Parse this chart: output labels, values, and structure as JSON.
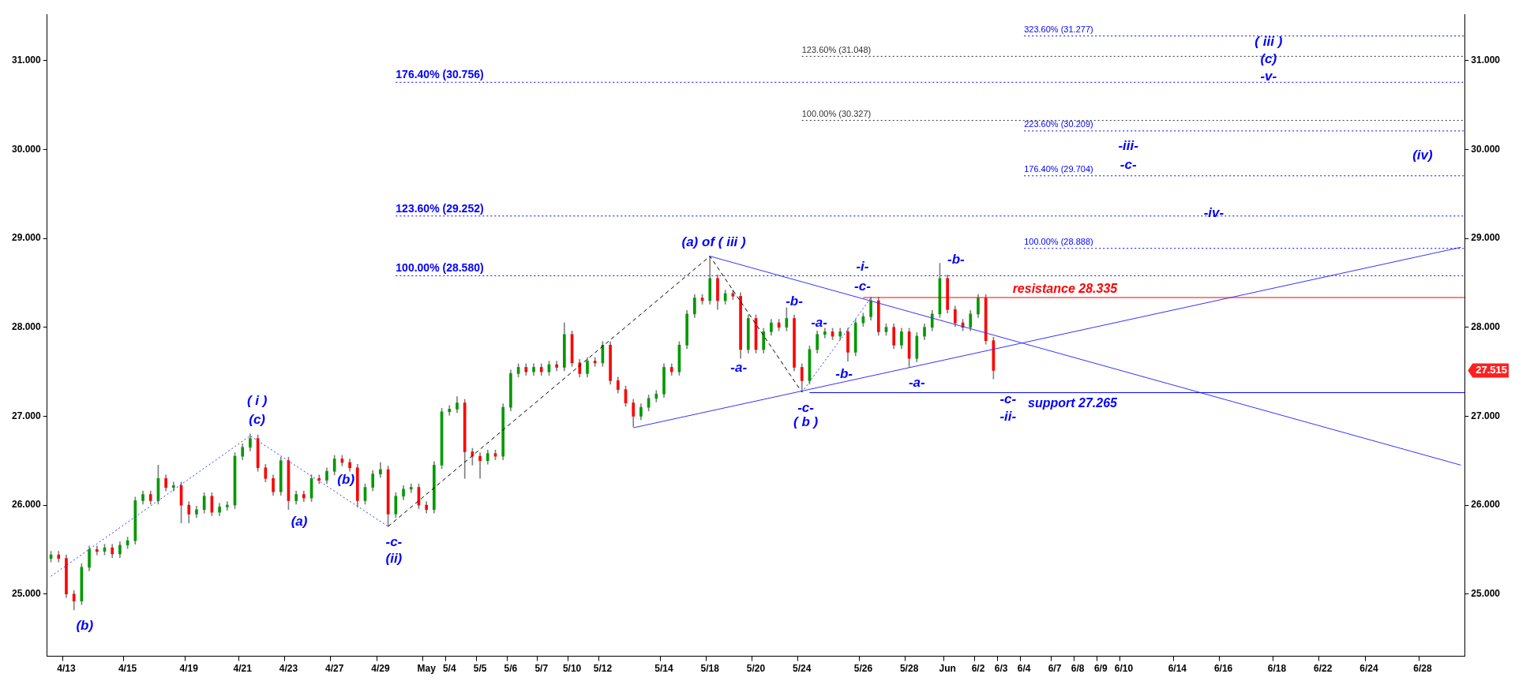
{
  "chart_data": {
    "type": "candlestick",
    "categories": [
      null,
      null,
      "4/13",
      null,
      null,
      null,
      null,
      null,
      null,
      null,
      "4/15",
      null,
      null,
      null,
      null,
      null,
      null,
      null,
      "4/19",
      null,
      null,
      null,
      null,
      null,
      null,
      "4/21",
      null,
      null,
      null,
      null,
      null,
      "4/23",
      null,
      null,
      null,
      null,
      null,
      "4/27",
      null,
      null,
      null,
      null,
      null,
      "4/29",
      null,
      null,
      null,
      null,
      null,
      "May",
      null,
      null,
      "5/4",
      null,
      null,
      null,
      "5/5",
      null,
      null,
      null,
      "5/6",
      null,
      null,
      null,
      "5/7",
      null,
      null,
      null,
      "5/10",
      null,
      null,
      null,
      "5/12",
      null,
      null,
      null,
      null,
      null,
      null,
      null,
      "5/14",
      null,
      null,
      null,
      null,
      null,
      "5/18",
      null,
      null,
      null,
      null,
      null,
      "5/20",
      null,
      null,
      null,
      null,
      null,
      "5/24",
      null,
      null,
      null,
      null,
      null,
      null,
      null,
      "5/26",
      null,
      null,
      null,
      null,
      null,
      "5/28",
      null,
      null,
      null,
      null,
      "Jun",
      null,
      null,
      null,
      "6/2",
      null,
      null,
      "6/3",
      null,
      null,
      "6/4",
      null,
      null,
      null,
      "6/7",
      null,
      null,
      "6/8",
      null,
      null,
      "6/9",
      null,
      null,
      "6/10",
      null,
      null,
      null,
      null,
      null,
      null,
      "6/14",
      null,
      null,
      null,
      null,
      null,
      "6/16",
      null,
      null,
      null,
      null,
      null,
      null,
      "6/18",
      null,
      null,
      null,
      null,
      null,
      "6/22",
      null,
      null,
      null,
      null,
      null,
      "6/24",
      null,
      null,
      null,
      null,
      null,
      null,
      "6/28",
      null,
      null,
      null,
      null,
      null
    ],
    "ohlc": [
      [
        25.4,
        25.48,
        25.36,
        25.44
      ],
      [
        25.44,
        25.48,
        25.36,
        25.4
      ],
      [
        25.4,
        25.44,
        24.96,
        25.0
      ],
      [
        25.0,
        25.04,
        24.82,
        24.92
      ],
      [
        24.92,
        25.34,
        24.88,
        25.3
      ],
      [
        25.3,
        25.54,
        25.26,
        25.5
      ],
      [
        25.5,
        25.54,
        25.44,
        25.48
      ],
      [
        25.48,
        25.56,
        25.44,
        25.52
      ],
      [
        25.52,
        25.56,
        25.41,
        25.45
      ],
      [
        25.45,
        25.59,
        25.41,
        25.55
      ],
      [
        25.55,
        25.64,
        25.51,
        25.6
      ],
      [
        25.6,
        26.09,
        25.56,
        26.05
      ],
      [
        26.05,
        26.16,
        26.01,
        26.12
      ],
      [
        26.12,
        26.16,
        26.01,
        26.05
      ],
      [
        26.05,
        26.45,
        26.01,
        26.3
      ],
      [
        26.3,
        26.34,
        26.16,
        26.2
      ],
      [
        26.2,
        26.26,
        26.16,
        26.22
      ],
      [
        26.22,
        26.26,
        25.8,
        26.0
      ],
      [
        26.0,
        26.04,
        25.8,
        25.9
      ],
      [
        25.9,
        25.99,
        25.86,
        25.95
      ],
      [
        25.95,
        26.14,
        25.91,
        26.1
      ],
      [
        26.1,
        26.14,
        25.88,
        25.92
      ],
      [
        25.92,
        26.02,
        25.88,
        25.98
      ],
      [
        25.98,
        26.04,
        25.94,
        26.0
      ],
      [
        26.0,
        26.59,
        25.96,
        26.55
      ],
      [
        26.55,
        26.69,
        26.51,
        26.65
      ],
      [
        26.65,
        26.8,
        26.61,
        26.75
      ],
      [
        26.75,
        26.79,
        26.38,
        26.42
      ],
      [
        26.42,
        26.46,
        26.26,
        26.3
      ],
      [
        26.3,
        26.34,
        26.11,
        26.15
      ],
      [
        26.15,
        26.54,
        26.11,
        26.5
      ],
      [
        26.5,
        26.54,
        25.95,
        26.05
      ],
      [
        26.05,
        26.16,
        26.01,
        26.12
      ],
      [
        26.12,
        26.16,
        26.04,
        26.08
      ],
      [
        26.08,
        26.34,
        26.04,
        26.3
      ],
      [
        26.3,
        26.34,
        26.24,
        26.28
      ],
      [
        26.28,
        26.42,
        26.24,
        26.38
      ],
      [
        26.38,
        26.56,
        26.34,
        26.52
      ],
      [
        26.52,
        26.56,
        26.44,
        26.48
      ],
      [
        26.48,
        26.52,
        26.38,
        26.42
      ],
      [
        26.42,
        26.46,
        25.98,
        26.05
      ],
      [
        26.05,
        26.24,
        26.01,
        26.2
      ],
      [
        26.2,
        26.39,
        26.16,
        26.35
      ],
      [
        26.35,
        26.48,
        26.31,
        26.4
      ],
      [
        26.4,
        26.44,
        25.76,
        25.9
      ],
      [
        25.9,
        26.14,
        25.86,
        26.1
      ],
      [
        26.1,
        26.22,
        26.06,
        26.18
      ],
      [
        26.18,
        26.24,
        26.14,
        26.2
      ],
      [
        26.2,
        26.24,
        25.96,
        26.0
      ],
      [
        26.0,
        26.04,
        25.91,
        25.95
      ],
      [
        25.95,
        26.49,
        25.91,
        26.45
      ],
      [
        26.45,
        27.09,
        26.41,
        27.05
      ],
      [
        27.05,
        27.12,
        27.01,
        27.08
      ],
      [
        27.08,
        27.22,
        27.04,
        27.15
      ],
      [
        27.15,
        27.19,
        26.3,
        26.6
      ],
      [
        26.6,
        26.64,
        26.45,
        26.55
      ],
      [
        26.55,
        26.59,
        26.3,
        26.5
      ],
      [
        26.5,
        26.62,
        26.46,
        26.58
      ],
      [
        26.58,
        26.62,
        26.51,
        26.55
      ],
      [
        26.55,
        27.14,
        26.51,
        27.1
      ],
      [
        27.1,
        27.52,
        27.06,
        27.48
      ],
      [
        27.48,
        27.59,
        27.44,
        27.55
      ],
      [
        27.55,
        27.59,
        27.46,
        27.5
      ],
      [
        27.5,
        27.59,
        27.46,
        27.55
      ],
      [
        27.55,
        27.59,
        27.46,
        27.5
      ],
      [
        27.5,
        27.62,
        27.46,
        27.58
      ],
      [
        27.58,
        27.62,
        27.51,
        27.55
      ],
      [
        27.55,
        28.05,
        27.51,
        27.92
      ],
      [
        27.92,
        27.96,
        27.56,
        27.6
      ],
      [
        27.6,
        27.64,
        27.44,
        27.48
      ],
      [
        27.48,
        27.66,
        27.44,
        27.62
      ],
      [
        27.62,
        27.66,
        27.56,
        27.6
      ],
      [
        27.6,
        27.84,
        27.56,
        27.8
      ],
      [
        27.8,
        27.84,
        27.36,
        27.4
      ],
      [
        27.4,
        27.44,
        27.26,
        27.3
      ],
      [
        27.3,
        27.34,
        27.11,
        27.15
      ],
      [
        27.15,
        27.19,
        26.88,
        27.0
      ],
      [
        27.0,
        27.14,
        26.96,
        27.1
      ],
      [
        27.1,
        27.24,
        27.06,
        27.2
      ],
      [
        27.2,
        27.29,
        27.16,
        27.25
      ],
      [
        27.25,
        27.59,
        27.21,
        27.55
      ],
      [
        27.55,
        27.59,
        27.46,
        27.5
      ],
      [
        27.5,
        27.84,
        27.46,
        27.8
      ],
      [
        27.8,
        28.19,
        27.76,
        28.15
      ],
      [
        28.15,
        28.37,
        28.11,
        28.33
      ],
      [
        28.33,
        28.37,
        28.26,
        28.3
      ],
      [
        28.3,
        28.8,
        28.26,
        28.55
      ],
      [
        28.55,
        28.59,
        28.2,
        28.3
      ],
      [
        28.3,
        28.42,
        28.26,
        28.38
      ],
      [
        28.38,
        28.42,
        28.31,
        28.35
      ],
      [
        28.35,
        28.39,
        27.65,
        27.75
      ],
      [
        27.75,
        28.14,
        27.71,
        28.1
      ],
      [
        28.1,
        28.14,
        27.71,
        27.75
      ],
      [
        27.75,
        27.99,
        27.71,
        27.95
      ],
      [
        27.95,
        28.09,
        27.91,
        28.05
      ],
      [
        28.05,
        28.09,
        27.96,
        28.0
      ],
      [
        28.0,
        28.22,
        27.96,
        28.1
      ],
      [
        28.1,
        28.14,
        27.51,
        27.55
      ],
      [
        27.55,
        27.59,
        27.28,
        27.4
      ],
      [
        27.4,
        27.79,
        27.36,
        27.75
      ],
      [
        27.75,
        27.96,
        27.71,
        27.92
      ],
      [
        27.92,
        27.99,
        27.88,
        27.95
      ],
      [
        27.95,
        27.99,
        27.86,
        27.9
      ],
      [
        27.9,
        27.99,
        27.86,
        27.95
      ],
      [
        27.95,
        27.99,
        27.62,
        27.72
      ],
      [
        27.72,
        28.09,
        27.68,
        28.05
      ],
      [
        28.05,
        28.16,
        28.01,
        28.12
      ],
      [
        28.12,
        28.34,
        28.08,
        28.3
      ],
      [
        28.3,
        28.34,
        27.91,
        27.95
      ],
      [
        27.95,
        28.04,
        27.91,
        28.0
      ],
      [
        28.0,
        28.04,
        27.76,
        27.8
      ],
      [
        27.8,
        27.99,
        27.76,
        27.95
      ],
      [
        27.95,
        27.99,
        27.55,
        27.65
      ],
      [
        27.65,
        27.94,
        27.61,
        27.9
      ],
      [
        27.9,
        28.04,
        27.86,
        28.0
      ],
      [
        28.0,
        28.19,
        27.96,
        28.15
      ],
      [
        28.15,
        28.72,
        28.11,
        28.55
      ],
      [
        28.55,
        28.59,
        28.16,
        28.2
      ],
      [
        28.2,
        28.24,
        28.01,
        28.05
      ],
      [
        28.05,
        28.09,
        27.96,
        28.0
      ],
      [
        28.0,
        28.19,
        27.96,
        28.15
      ],
      [
        28.15,
        28.37,
        28.11,
        28.33
      ],
      [
        28.33,
        28.37,
        27.81,
        27.85
      ],
      [
        27.85,
        27.89,
        27.42,
        27.515
      ],
      null,
      null,
      null,
      null,
      null,
      null,
      null,
      null,
      null,
      null,
      null,
      null,
      null,
      null,
      null,
      null,
      null,
      null,
      null,
      null,
      null,
      null,
      null,
      null,
      null,
      null,
      null,
      null,
      null,
      null,
      null,
      null,
      null,
      null,
      null,
      null,
      null,
      null,
      null,
      null,
      null,
      null,
      null,
      null,
      null,
      null,
      null,
      null,
      null,
      null,
      null,
      null,
      null,
      null,
      null,
      null,
      null,
      null,
      null,
      null,
      null
    ],
    "series": [
      {
        "type": "line",
        "color": "#3333ff",
        "line_style": "solid",
        "values": [
          null,
          null,
          null,
          null,
          null,
          null,
          null,
          null,
          null,
          null,
          null,
          null,
          null,
          null,
          null,
          null,
          null,
          null,
          null,
          null,
          null,
          null,
          null,
          null,
          null,
          null,
          null,
          null,
          null,
          null,
          null,
          null,
          null,
          null,
          null,
          null,
          null,
          null,
          null,
          null,
          null,
          null,
          null,
          null,
          null,
          null,
          null,
          null,
          null,
          null,
          null,
          null,
          null,
          null,
          null,
          null,
          null,
          null,
          null,
          null,
          null,
          null,
          null,
          null,
          null,
          null,
          null,
          null,
          null,
          null,
          null,
          null,
          null,
          null,
          null,
          null,
          null,
          null,
          null,
          null,
          null,
          null,
          null,
          null,
          null,
          null,
          28.8,
          null,
          null,
          null,
          null,
          null,
          null,
          null,
          null,
          null,
          null,
          null,
          null,
          null,
          null,
          null,
          null,
          null,
          null,
          null,
          null,
          null,
          null,
          null,
          null,
          null,
          null,
          null,
          null,
          null,
          null,
          null,
          null,
          null,
          null,
          null,
          null,
          null,
          null,
          null,
          null,
          null,
          null,
          null,
          null,
          null,
          null,
          null,
          null,
          null,
          null,
          null,
          null,
          null,
          null,
          null,
          null,
          null,
          null,
          null,
          null,
          null,
          null,
          null,
          null,
          null,
          null,
          null,
          null,
          null,
          null,
          null,
          null,
          null,
          null,
          null,
          null,
          null,
          null,
          null,
          null,
          null,
          null,
          null,
          null,
          null,
          null,
          null,
          null,
          null,
          null,
          null,
          null,
          null,
          null,
          null,
          null,
          null,
          26.45
        ]
      },
      {
        "type": "line",
        "color": "#3333ff",
        "line_style": "solid",
        "values": [
          null,
          null,
          null,
          null,
          null,
          null,
          null,
          null,
          null,
          null,
          null,
          null,
          null,
          null,
          null,
          null,
          null,
          null,
          null,
          null,
          null,
          null,
          null,
          null,
          null,
          null,
          null,
          null,
          null,
          null,
          null,
          null,
          null,
          null,
          null,
          null,
          null,
          null,
          null,
          null,
          null,
          null,
          null,
          null,
          null,
          null,
          null,
          null,
          null,
          null,
          null,
          null,
          null,
          null,
          null,
          null,
          null,
          null,
          null,
          null,
          null,
          null,
          null,
          null,
          null,
          null,
          null,
          null,
          null,
          null,
          null,
          null,
          null,
          null,
          null,
          null,
          26.87,
          null,
          null,
          null,
          null,
          null,
          null,
          null,
          null,
          null,
          null,
          null,
          null,
          null,
          null,
          null,
          null,
          null,
          null,
          null,
          null,
          null,
          null,
          null,
          null,
          null,
          null,
          null,
          null,
          null,
          null,
          null,
          null,
          null,
          null,
          null,
          null,
          null,
          null,
          null,
          null,
          null,
          null,
          null,
          null,
          null,
          null,
          null,
          null,
          null,
          null,
          null,
          null,
          null,
          null,
          null,
          null,
          null,
          null,
          null,
          null,
          null,
          null,
          null,
          null,
          null,
          null,
          null,
          null,
          null,
          null,
          null,
          null,
          null,
          null,
          null,
          null,
          null,
          null,
          null,
          null,
          null,
          null,
          null,
          null,
          null,
          null,
          null,
          null,
          null,
          null,
          null,
          null,
          null,
          null,
          null,
          null,
          null,
          null,
          null,
          null,
          null,
          null,
          null,
          null,
          null,
          null,
          null,
          28.9
        ]
      },
      {
        "type": "line",
        "color": "#3333ff",
        "line_style": "dotted",
        "values": [
          25.2,
          null,
          null,
          null,
          null,
          null,
          null,
          null,
          null,
          null,
          null,
          null,
          null,
          null,
          null,
          null,
          null,
          null,
          null,
          null,
          null,
          null,
          null,
          null,
          null,
          null,
          26.78,
          null,
          null,
          null,
          null,
          null,
          null,
          null,
          null,
          null,
          null,
          null,
          null,
          null,
          null,
          null,
          null,
          null,
          25.76,
          null,
          null,
          null,
          null,
          null,
          null,
          null,
          null,
          null,
          null,
          null,
          null,
          null,
          null,
          null,
          null,
          null,
          null,
          null,
          null,
          null,
          null,
          null,
          null,
          null,
          null,
          null,
          null,
          null,
          null,
          null,
          null,
          null,
          null,
          null,
          null,
          null,
          null,
          null,
          null,
          null,
          null,
          null,
          null,
          null,
          null,
          null,
          null,
          null,
          null,
          null,
          null,
          null,
          null,
          null,
          null,
          null,
          null,
          null,
          null,
          null,
          null,
          null,
          null,
          null,
          null,
          null,
          null,
          null,
          null,
          null,
          null,
          null,
          null,
          null,
          null,
          null,
          null,
          null,
          null,
          null,
          null,
          null,
          null,
          null,
          null,
          null,
          null,
          null,
          null,
          null,
          null,
          null,
          null,
          null,
          null,
          null,
          null,
          null,
          null,
          null,
          null,
          null,
          null,
          null,
          null,
          null,
          null,
          null,
          null,
          null,
          null,
          null,
          null,
          null,
          null,
          null,
          null,
          null,
          null,
          null,
          null,
          null,
          null,
          null,
          null,
          null,
          null,
          null,
          null,
          null,
          null,
          null,
          null,
          null,
          null,
          null,
          null,
          null,
          null
        ]
      },
      {
        "type": "line",
        "color": "#000000",
        "line_style": "dashed",
        "values": [
          null,
          null,
          null,
          null,
          null,
          null,
          null,
          null,
          null,
          null,
          null,
          null,
          null,
          null,
          null,
          null,
          null,
          null,
          null,
          null,
          null,
          null,
          null,
          null,
          null,
          null,
          null,
          null,
          null,
          null,
          null,
          null,
          null,
          null,
          null,
          null,
          null,
          null,
          null,
          null,
          null,
          null,
          null,
          null,
          25.76,
          null,
          null,
          null,
          null,
          null,
          null,
          null,
          null,
          null,
          null,
          null,
          null,
          null,
          null,
          null,
          null,
          null,
          null,
          null,
          null,
          null,
          null,
          null,
          null,
          null,
          null,
          null,
          null,
          null,
          null,
          null,
          null,
          null,
          null,
          null,
          null,
          null,
          null,
          null,
          null,
          null,
          28.8,
          null,
          null,
          null,
          null,
          null,
          null,
          null,
          null,
          null,
          null,
          null,
          27.27,
          null,
          null,
          null,
          null,
          null,
          null,
          null,
          null,
          null,
          null,
          null,
          null,
          null,
          null,
          null,
          null,
          null,
          null,
          null,
          null,
          null,
          null,
          null,
          null,
          null,
          null,
          null,
          null,
          null,
          null,
          null,
          null,
          null,
          null,
          null,
          null,
          null,
          null,
          null,
          null,
          null,
          null,
          null,
          null,
          null,
          null,
          null,
          null,
          null,
          null,
          null,
          null,
          null,
          null,
          null,
          null,
          null,
          null,
          null,
          null,
          null,
          null,
          null,
          null,
          null,
          null,
          null,
          null,
          null,
          null,
          null,
          null,
          null,
          null,
          null,
          null,
          null,
          null,
          null,
          null,
          null,
          null,
          null,
          null,
          null,
          null
        ]
      },
      {
        "type": "line",
        "color": "#3333ff",
        "line_style": "dotted",
        "values": [
          null,
          null,
          null,
          null,
          null,
          null,
          null,
          null,
          null,
          null,
          null,
          null,
          null,
          null,
          null,
          null,
          null,
          null,
          null,
          null,
          null,
          null,
          null,
          null,
          null,
          null,
          null,
          null,
          null,
          null,
          null,
          null,
          null,
          null,
          null,
          null,
          null,
          null,
          null,
          null,
          null,
          null,
          null,
          null,
          null,
          null,
          null,
          null,
          null,
          null,
          null,
          null,
          null,
          null,
          null,
          null,
          null,
          null,
          null,
          null,
          null,
          null,
          null,
          null,
          null,
          null,
          null,
          null,
          null,
          null,
          null,
          null,
          null,
          null,
          null,
          null,
          null,
          null,
          null,
          null,
          null,
          null,
          null,
          null,
          null,
          null,
          null,
          null,
          null,
          null,
          null,
          null,
          null,
          null,
          null,
          null,
          null,
          null,
          27.27,
          null,
          null,
          null,
          null,
          null,
          null,
          null,
          null,
          28.33,
          null,
          null,
          null,
          null,
          null,
          null,
          null,
          null,
          null,
          null,
          null,
          null,
          null,
          null,
          null,
          null,
          null,
          null,
          null,
          null,
          null,
          null,
          null,
          null,
          null,
          null,
          null,
          null,
          null,
          null,
          null,
          null,
          null,
          null,
          null,
          null,
          null,
          null,
          null,
          null,
          null,
          null,
          null,
          null,
          null,
          null,
          null,
          null,
          null,
          null,
          null,
          null,
          null,
          null,
          null,
          null,
          null,
          null,
          null,
          null,
          null,
          null,
          null,
          null,
          null,
          null,
          null,
          null,
          null,
          null,
          null,
          null,
          null,
          null,
          null,
          null,
          null
        ]
      }
    ],
    "ylim": [
      24.3,
      31.52
    ],
    "yticks": [
      {
        "value": 25,
        "label": "25.000"
      },
      {
        "value": 26,
        "label": "26.000"
      },
      {
        "value": 27,
        "label": "27.000"
      },
      {
        "value": 28,
        "label": "28.000"
      },
      {
        "value": 29,
        "label": "29.000"
      },
      {
        "value": 30,
        "label": "30.000"
      },
      {
        "value": 31,
        "label": "31.000"
      }
    ],
    "y2lim": [
      24.3,
      31.52
    ],
    "y2ticks": [
      {
        "value": 25,
        "label": "25.000"
      },
      {
        "value": 26,
        "label": "26.000"
      },
      {
        "value": 27,
        "label": "27.000"
      },
      {
        "value": 28,
        "label": "28.000"
      },
      {
        "value": 29,
        "label": "29.000"
      },
      {
        "value": 30,
        "label": "30.000"
      },
      {
        "value": 31,
        "label": "31.000"
      }
    ],
    "ref_lines": [
      {
        "axis": "y",
        "value": 30.756,
        "label": "176.40% (30.756)",
        "color": "#0000ff",
        "line_style": "dotted"
      },
      {
        "axis": "y",
        "value": 29.252,
        "label": "123.60% (29.252)",
        "color": "#0000ff",
        "line_style": "dotted"
      },
      {
        "axis": "y",
        "value": 28.58,
        "label": "100.00% (28.580)",
        "color": "#0000ff",
        "line_style": "dotted"
      },
      {
        "axis": "y",
        "value": 31.048,
        "label": "123.60% (31.048)",
        "color": "#333333",
        "line_style": "dotted"
      },
      {
        "axis": "y",
        "value": 30.327,
        "label": "100.00% (30.327)",
        "color": "#333333",
        "line_style": "dotted"
      },
      {
        "axis": "y",
        "value": 31.277,
        "label": "323.60% (31.277)",
        "color": "#0000ff",
        "line_style": "dotted"
      },
      {
        "axis": "y",
        "value": 30.209,
        "label": "223.60% (30.209)",
        "color": "#0000ff",
        "line_style": "dotted"
      },
      {
        "axis": "y",
        "value": 29.704,
        "label": "176.40% (29.704)",
        "color": "#0000ff",
        "line_style": "dotted"
      },
      {
        "axis": "y",
        "value": 28.888,
        "label": "100.00% (28.888)",
        "color": "#0000ff",
        "line_style": "dotted"
      },
      {
        "axis": "y",
        "value": 28.335,
        "label": "resistance 28.335",
        "color": "#ff0000",
        "line_style": "solid"
      },
      {
        "axis": "y",
        "value": 27.265,
        "label": "support 27.265",
        "color": "#0000ff",
        "line_style": "solid"
      }
    ],
    "annotations": [
      "( i )",
      "(c)",
      "(b)",
      "(a)",
      "(b)",
      "-c-",
      "(ii)",
      "(a) of ( iii )",
      "-a-",
      "-b-",
      "-c-",
      "( b )",
      "-a-",
      "-b-",
      "-i-",
      "-c-",
      "-a-",
      "-b-",
      "-c-",
      "-ii-",
      "( iii )",
      "(c)",
      "-v-",
      "-iii-",
      "-c-",
      "-iv-",
      "(iv)",
      "27.515"
    ],
    "grid": false,
    "legend": false
  }
}
